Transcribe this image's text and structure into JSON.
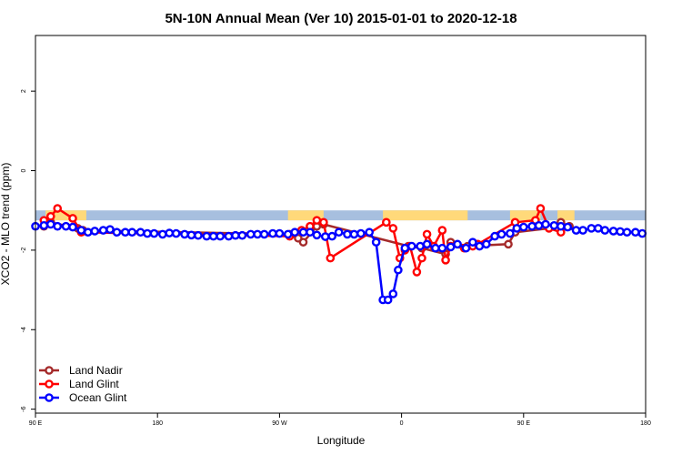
{
  "chart_data": {
    "type": "line",
    "title": "5N-10N Annual Mean (Ver 10)   2015-01-01 to 2020-12-18",
    "xlabel": "Longitude",
    "ylabel": "XCO2 - MLO trend (ppm)",
    "xlim": [
      0,
      360
    ],
    "ylim": [
      -6.1,
      3.4
    ],
    "x_ticks": [
      {
        "value": 0,
        "label": "90 E"
      },
      {
        "value": 72,
        "label": "180"
      },
      {
        "value": 144,
        "label": "90 W"
      },
      {
        "value": 216,
        "label": "0"
      },
      {
        "value": 288,
        "label": "90 E"
      },
      {
        "value": 360,
        "label": "180"
      }
    ],
    "y_ticks": [
      -6,
      -4,
      -2,
      0,
      2
    ],
    "grid": false,
    "legend": {
      "position": "bottom-left"
    },
    "land_mask": {
      "y_range": [
        -1.25,
        -1.0
      ],
      "ocean_color": "#a7bfdf",
      "land_color": "#ffd97a",
      "land_segments": [
        [
          6,
          30
        ],
        [
          149,
          170
        ],
        [
          205,
          255
        ],
        [
          280,
          298
        ],
        [
          308,
          318
        ]
      ]
    },
    "series": [
      {
        "name": "Land Nadir",
        "color": "#a52a2a",
        "x": [
          5,
          9,
          25,
          28,
          150,
          155,
          158,
          166,
          170,
          220,
          228,
          242,
          245,
          255,
          279,
          283,
          303,
          310,
          315
        ],
        "y": [
          -1.4,
          -1.3,
          -1.45,
          -1.5,
          -1.6,
          -1.7,
          -1.8,
          -1.4,
          -1.35,
          -1.9,
          -1.95,
          -2.1,
          -1.8,
          -1.9,
          -1.85,
          -1.55,
          -1.45,
          -1.3,
          -1.4
        ]
      },
      {
        "name": "Land Glint",
        "color": "#ff0000",
        "x": [
          5,
          9,
          13,
          22,
          27,
          150,
          157,
          162,
          166,
          170,
          174,
          207,
          211,
          215,
          218,
          221,
          225,
          228,
          231,
          235,
          240,
          242,
          245,
          253,
          258,
          261,
          283,
          295,
          298,
          303,
          310
        ],
        "y": [
          -1.25,
          -1.15,
          -0.95,
          -1.2,
          -1.55,
          -1.65,
          -1.5,
          -1.4,
          -1.25,
          -1.3,
          -2.2,
          -1.3,
          -1.45,
          -2.2,
          -2.0,
          -1.9,
          -2.55,
          -2.2,
          -1.6,
          -1.9,
          -1.5,
          -2.25,
          -1.9,
          -1.95,
          -1.9,
          -1.85,
          -1.3,
          -1.25,
          -0.95,
          -1.45,
          -1.55
        ]
      },
      {
        "name": "Ocean Glint",
        "color": "#0000ff",
        "x": [
          0,
          5,
          9,
          13,
          18,
          22,
          27,
          31,
          35,
          40,
          44,
          48,
          53,
          57,
          62,
          66,
          70,
          75,
          79,
          83,
          88,
          92,
          96,
          101,
          105,
          109,
          114,
          118,
          122,
          127,
          131,
          135,
          140,
          144,
          149,
          153,
          158,
          162,
          166,
          171,
          175,
          179,
          184,
          188,
          192,
          197,
          201,
          205,
          208,
          211,
          214,
          218,
          222,
          227,
          231,
          236,
          240,
          245,
          249,
          254,
          258,
          262,
          266,
          271,
          275,
          280,
          284,
          288,
          293,
          297,
          301,
          306,
          310,
          314,
          319,
          323,
          328,
          332,
          336,
          341,
          345,
          349,
          354,
          358
        ],
        "y": [
          -1.4,
          -1.38,
          -1.35,
          -1.4,
          -1.4,
          -1.42,
          -1.5,
          -1.55,
          -1.52,
          -1.5,
          -1.48,
          -1.55,
          -1.55,
          -1.55,
          -1.55,
          -1.58,
          -1.58,
          -1.6,
          -1.57,
          -1.58,
          -1.6,
          -1.62,
          -1.63,
          -1.65,
          -1.65,
          -1.65,
          -1.65,
          -1.63,
          -1.63,
          -1.6,
          -1.6,
          -1.6,
          -1.58,
          -1.58,
          -1.6,
          -1.55,
          -1.55,
          -1.55,
          -1.62,
          -1.66,
          -1.65,
          -1.55,
          -1.6,
          -1.6,
          -1.58,
          -1.55,
          -1.8,
          -3.25,
          -3.25,
          -3.1,
          -2.5,
          -1.95,
          -1.9,
          -1.9,
          -1.85,
          -1.95,
          -1.95,
          -1.92,
          -1.85,
          -1.95,
          -1.8,
          -1.9,
          -1.85,
          -1.65,
          -1.6,
          -1.58,
          -1.45,
          -1.42,
          -1.4,
          -1.38,
          -1.35,
          -1.38,
          -1.4,
          -1.42,
          -1.5,
          -1.5,
          -1.45,
          -1.45,
          -1.5,
          -1.52,
          -1.53,
          -1.55,
          -1.55,
          -1.58
        ]
      }
    ]
  }
}
